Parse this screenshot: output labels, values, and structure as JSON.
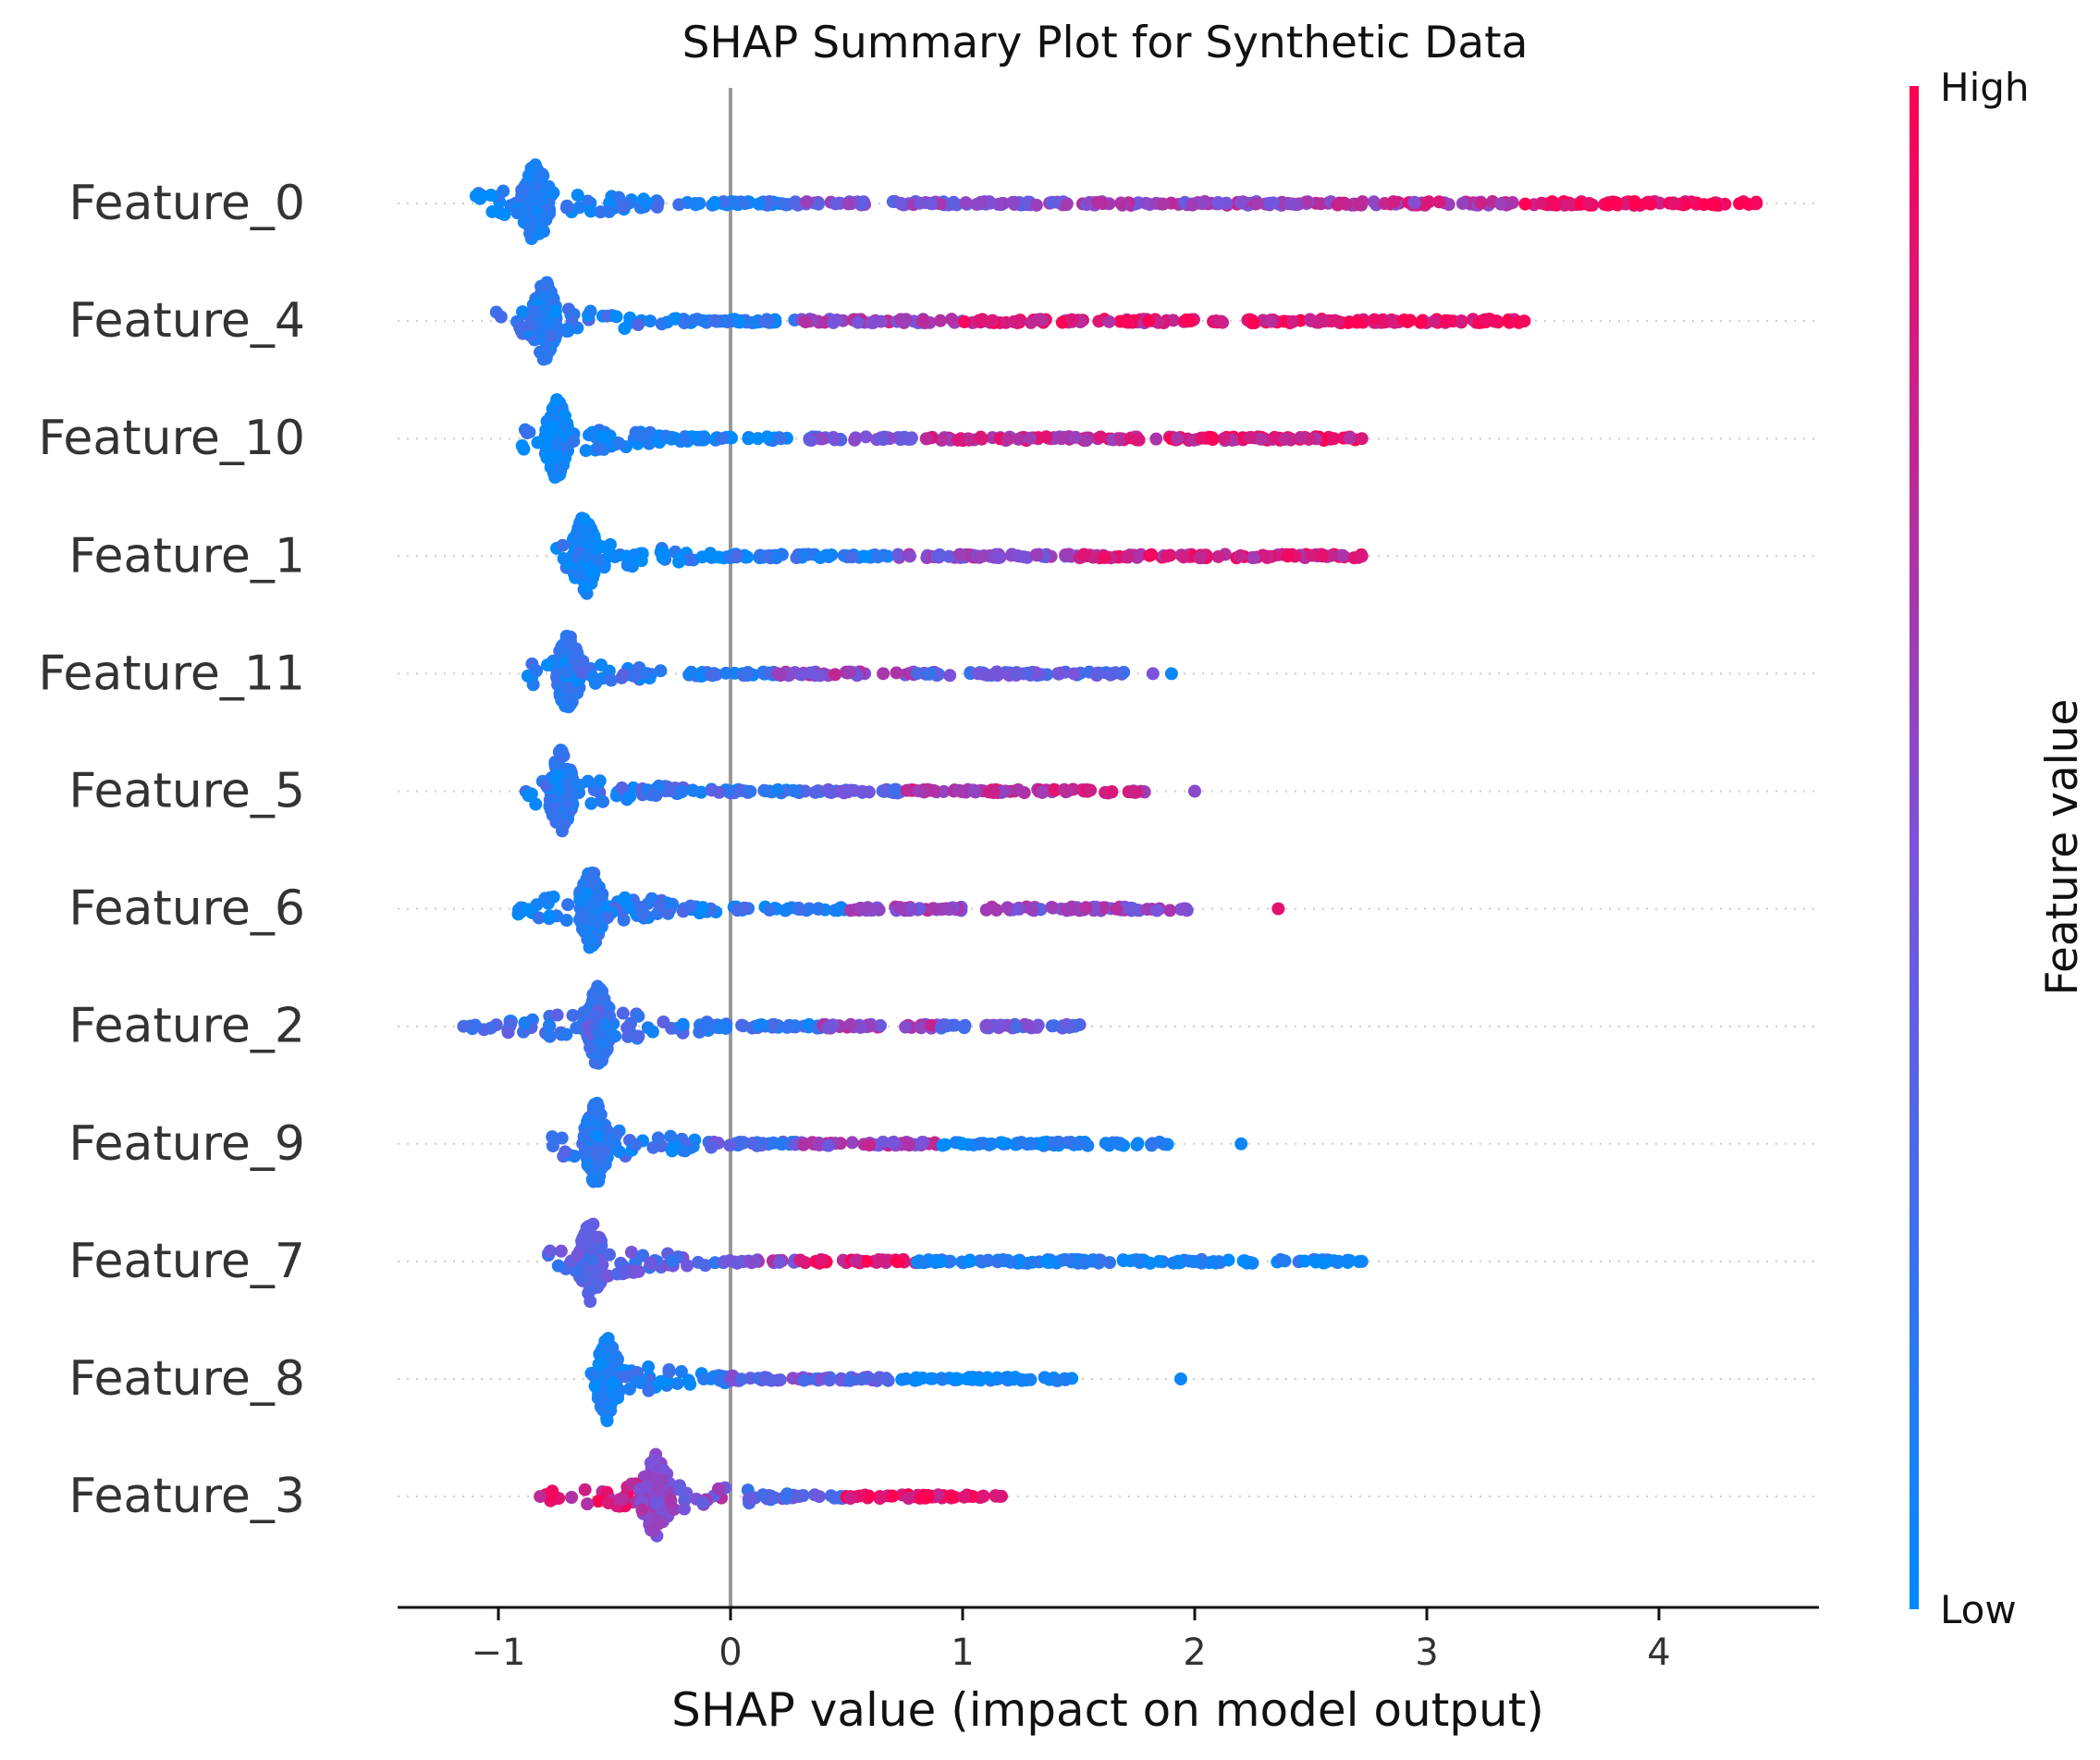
{
  "chart_data": {
    "type": "scatter",
    "subtype": "shap-beeswarm",
    "title": "SHAP Summary Plot for Synthetic Data",
    "xlabel": "SHAP value (impact on model output)",
    "xlim": [
      -1.43,
      4.68
    ],
    "xticks": [
      -1,
      0,
      1,
      2,
      3,
      4
    ],
    "xtick_labels": [
      "−1",
      "0",
      "1",
      "2",
      "3",
      "4"
    ],
    "grid": false,
    "zero_line": 0,
    "colorbar": {
      "label": "Feature value",
      "high_label": "High",
      "low_label": "Low",
      "low_color": "#008bfb",
      "mid_color": "#7c52d9",
      "high_color": "#ff0052"
    },
    "features": [
      {
        "name": "Feature_0",
        "cluster": [
          -0.84,
          0.06
        ],
        "bands": [
          {
            "range": [
              -1.1,
              -0.84
            ],
            "color": 0.08
          },
          {
            "range": [
              -0.84,
              0.25
            ],
            "color": 0.12
          },
          {
            "range": [
              0.25,
              0.6
            ],
            "color": 0.45
          },
          {
            "range": [
              0.7,
              1.5
            ],
            "color": 0.5
          },
          {
            "range": [
              1.5,
              2.4
            ],
            "color": 0.6
          },
          {
            "range": [
              2.4,
              3.4
            ],
            "color": 0.7
          },
          {
            "range": [
              3.4,
              4.42
            ],
            "color": 0.95
          }
        ],
        "outliers": [
          {
            "x": 3.55,
            "color": 0.95
          },
          {
            "x": 3.7,
            "color": 0.9
          },
          {
            "x": 3.9,
            "color": 1.0
          },
          {
            "x": 4.42,
            "color": 0.95
          }
        ]
      },
      {
        "name": "Feature_4",
        "cluster": [
          -0.8,
          0.05
        ],
        "bands": [
          {
            "range": [
              -1.02,
              -0.8
            ],
            "color": 0.15
          },
          {
            "range": [
              -0.8,
              0.3
            ],
            "color": 0.15
          },
          {
            "range": [
              0.3,
              1.0
            ],
            "color": 0.6
          },
          {
            "range": [
              1.0,
              2.0
            ],
            "color": 0.85
          },
          {
            "range": [
              2.0,
              2.9
            ],
            "color": 0.9
          },
          {
            "range": [
              2.9,
              3.42
            ],
            "color": 0.95
          }
        ],
        "outliers": [
          {
            "x": 3.1,
            "color": 0.95
          },
          {
            "x": 3.3,
            "color": 0.95
          },
          {
            "x": 3.42,
            "color": 0.95
          }
        ]
      },
      {
        "name": "Feature_10",
        "cluster": [
          -0.75,
          0.05
        ],
        "bands": [
          {
            "range": [
              -0.9,
              -0.75
            ],
            "color": 0.05
          },
          {
            "range": [
              -0.75,
              0.3
            ],
            "color": 0.05
          },
          {
            "range": [
              0.3,
              0.8
            ],
            "color": 0.4
          },
          {
            "range": [
              0.8,
              1.7
            ],
            "color": 0.75
          },
          {
            "range": [
              1.7,
              2.72
            ],
            "color": 0.85
          }
        ],
        "outliers": [
          {
            "x": 2.6,
            "color": 0.9
          },
          {
            "x": 2.72,
            "color": 0.85
          }
        ]
      },
      {
        "name": "Feature_1",
        "cluster": [
          -0.63,
          0.05
        ],
        "bands": [
          {
            "range": [
              -0.75,
              -0.63
            ],
            "color": 0.1
          },
          {
            "range": [
              -0.63,
              0.0
            ],
            "color": 0.05
          },
          {
            "range": [
              0.0,
              0.7
            ],
            "color": 0.15
          },
          {
            "range": [
              0.7,
              1.5
            ],
            "color": 0.55
          },
          {
            "range": [
              1.5,
              2.72
            ],
            "color": 0.8
          }
        ],
        "outliers": [
          {
            "x": 2.4,
            "color": 0.95
          },
          {
            "x": 2.55,
            "color": 0.9
          },
          {
            "x": 2.72,
            "color": 0.85
          }
        ]
      },
      {
        "name": "Feature_11",
        "cluster": [
          -0.7,
          0.05
        ],
        "bands": [
          {
            "range": [
              -0.88,
              -0.7
            ],
            "color": 0.1
          },
          {
            "range": [
              -0.7,
              0.2
            ],
            "color": 0.18
          },
          {
            "range": [
              0.2,
              0.8
            ],
            "color": 0.6
          },
          {
            "range": [
              0.8,
              1.7
            ],
            "color": 0.35
          }
        ],
        "outliers": [
          {
            "x": 1.82,
            "color": 0.5
          },
          {
            "x": 1.9,
            "color": 0.05
          }
        ]
      },
      {
        "name": "Feature_5",
        "cluster": [
          -0.73,
          0.05
        ],
        "bands": [
          {
            "range": [
              -0.92,
              -0.73
            ],
            "color": 0.15
          },
          {
            "range": [
              -0.73,
              0.4
            ],
            "color": 0.2
          },
          {
            "range": [
              0.4,
              0.75
            ],
            "color": 0.35
          },
          {
            "range": [
              0.75,
              1.8
            ],
            "color": 0.75
          }
        ],
        "outliers": [
          {
            "x": 2.0,
            "color": 0.55
          }
        ]
      },
      {
        "name": "Feature_6",
        "cluster": [
          -0.6,
          0.05
        ],
        "bands": [
          {
            "range": [
              -0.92,
              -0.6
            ],
            "color": 0.05
          },
          {
            "range": [
              -0.6,
              0.5
            ],
            "color": 0.15
          },
          {
            "range": [
              0.5,
              1.1
            ],
            "color": 0.6
          },
          {
            "range": [
              1.1,
              1.98
            ],
            "color": 0.55
          }
        ],
        "outliers": [
          {
            "x": 2.36,
            "color": 0.9
          }
        ]
      },
      {
        "name": "Feature_2",
        "cluster": [
          -0.57,
          0.05
        ],
        "bands": [
          {
            "range": [
              -1.15,
              -0.57
            ],
            "color": 0.25
          },
          {
            "range": [
              -0.57,
              0.4
            ],
            "color": 0.2
          },
          {
            "range": [
              0.4,
              0.9
            ],
            "color": 0.6
          },
          {
            "range": [
              0.9,
              1.52
            ],
            "color": 0.4
          }
        ],
        "outliers": [
          {
            "x": -1.15,
            "color": 0.3
          }
        ]
      },
      {
        "name": "Feature_9",
        "cluster": [
          -0.58,
          0.05
        ],
        "bands": [
          {
            "range": [
              -0.78,
              -0.58
            ],
            "color": 0.2
          },
          {
            "range": [
              -0.58,
              -0.1
            ],
            "color": 0.15
          },
          {
            "range": [
              -0.1,
              0.3
            ],
            "color": 0.3
          },
          {
            "range": [
              0.3,
              0.9
            ],
            "color": 0.6
          },
          {
            "range": [
              0.9,
              1.9
            ],
            "color": 0.05
          }
        ],
        "outliers": [
          {
            "x": 2.2,
            "color": 0.05
          }
        ]
      },
      {
        "name": "Feature_7",
        "cluster": [
          -0.6,
          0.05
        ],
        "bands": [
          {
            "range": [
              -0.82,
              -0.6
            ],
            "color": 0.3
          },
          {
            "range": [
              -0.6,
              0.0
            ],
            "color": 0.35
          },
          {
            "range": [
              0.0,
              0.3
            ],
            "color": 0.55
          },
          {
            "range": [
              0.3,
              0.8
            ],
            "color": 0.9
          },
          {
            "range": [
              0.8,
              2.72
            ],
            "color": 0.05
          }
        ],
        "outliers": [
          {
            "x": 2.62,
            "color": 0.05
          },
          {
            "x": 2.72,
            "color": 0.05
          }
        ]
      },
      {
        "name": "Feature_8",
        "cluster": [
          -0.53,
          0.05
        ],
        "bands": [
          {
            "range": [
              -0.6,
              -0.53
            ],
            "color": 0.05
          },
          {
            "range": [
              -0.53,
              0.0
            ],
            "color": 0.1
          },
          {
            "range": [
              0.0,
              0.7
            ],
            "color": 0.4
          },
          {
            "range": [
              0.7,
              1.48
            ],
            "color": 0.05
          }
        ],
        "outliers": [
          {
            "x": 1.94,
            "color": 0.05
          }
        ]
      },
      {
        "name": "Feature_3",
        "cluster": [
          -0.32,
          0.06
        ],
        "bands": [
          {
            "range": [
              -0.82,
              -0.4
            ],
            "color": 0.85
          },
          {
            "range": [
              -0.4,
              0.0
            ],
            "color": 0.55
          },
          {
            "range": [
              0.0,
              0.5
            ],
            "color": 0.35
          },
          {
            "range": [
              0.5,
              1.18
            ],
            "color": 0.95
          }
        ],
        "outliers": [
          {
            "x": -0.82,
            "color": 0.75
          }
        ]
      }
    ]
  }
}
